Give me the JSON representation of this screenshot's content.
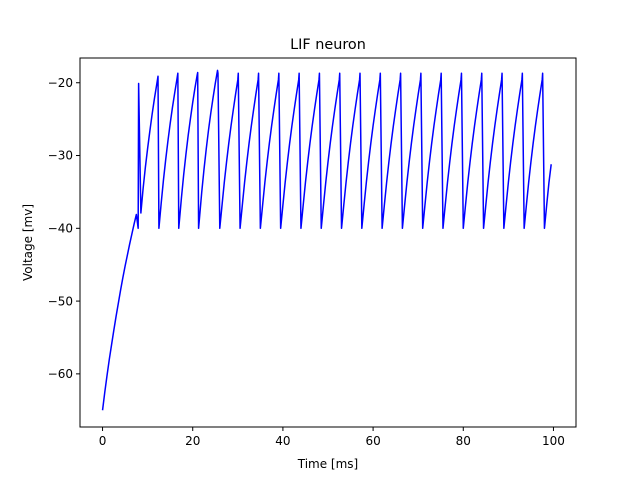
{
  "chart_data": {
    "type": "line",
    "title": "LIF neuron",
    "xlabel": "Time [ms]",
    "ylabel": "Voltage [mv]",
    "xlim": [
      -5,
      105
    ],
    "ylim": [
      -67.3,
      -16.6
    ],
    "grid": false,
    "xticks": [
      0,
      20,
      40,
      60,
      80,
      100
    ],
    "yticks": [
      -60,
      -50,
      -40,
      -30,
      -20
    ],
    "xtick_labels": [
      "0",
      "20",
      "40",
      "60",
      "80",
      "100"
    ],
    "ytick_labels": [
      "−60",
      "−50",
      "−40",
      "−30",
      "−20"
    ],
    "series": [
      {
        "color": "#0000ff",
        "x": [
          0,
          0.5,
          1,
          1.5,
          2,
          2.5,
          3,
          3.5,
          4,
          4.5,
          5,
          5.5,
          6,
          6.5,
          7,
          7.5,
          7.9,
          8,
          8.5,
          9,
          9.5,
          10,
          10.5,
          11,
          11.5,
          12,
          12.3,
          12.5,
          13,
          13.5,
          14,
          14.5,
          15,
          15.5,
          16,
          16.5,
          16.7,
          16.9,
          17.5,
          18,
          18.5,
          19,
          19.5,
          20,
          20.5,
          21,
          21.1,
          21.3,
          22,
          22.5,
          23,
          23.5,
          24,
          24.5,
          25,
          25.5,
          25.6,
          26,
          26.5,
          27,
          27.5,
          28,
          28.5,
          29,
          29.5,
          30,
          30.1,
          30.5,
          31,
          31.5,
          32,
          32.5,
          33,
          33.5,
          34,
          34.5,
          34.6,
          35,
          35.5,
          36,
          36.5,
          37,
          37.5,
          38,
          38.5,
          39,
          39.1,
          39.5,
          40,
          40.5,
          41,
          41.5,
          42,
          42.5,
          43,
          43.5,
          43.6,
          44,
          44.5,
          45,
          45.5,
          46,
          46.5,
          47,
          47.5,
          48,
          48.1,
          48.5,
          49,
          49.5,
          50,
          50.5,
          51,
          51.5,
          52,
          52.5,
          52.6,
          53,
          53.5,
          54,
          54.5,
          55,
          55.5,
          56,
          56.5,
          57,
          57.1,
          57.5,
          58,
          58.5,
          59,
          59.5,
          60,
          60.5,
          61,
          61.5,
          61.6,
          62,
          62.5,
          63,
          63.5,
          64,
          64.5,
          65,
          65.5,
          66,
          66.1,
          66.5,
          67,
          67.5,
          68,
          68.5,
          69,
          69.5,
          70,
          70.5,
          70.6,
          71,
          71.5,
          72,
          72.5,
          73,
          73.5,
          74,
          74.5,
          75,
          75.1,
          75.5,
          76,
          76.5,
          77,
          77.5,
          78,
          78.5,
          79,
          79.5,
          79.6,
          80,
          80.5,
          81,
          81.5,
          82,
          82.5,
          83,
          83.5,
          84,
          84.1,
          84.5,
          85,
          85.5,
          86,
          86.5,
          87,
          87.5,
          88,
          88.5,
          88.6,
          89,
          89.5,
          90,
          90.5,
          91,
          91.5,
          92,
          92.5,
          93,
          93.1,
          93.5,
          94,
          94.5,
          95,
          95.5,
          96,
          96.5,
          97,
          97.5,
          97.6,
          98,
          98.5,
          99,
          99.5
        ],
        "y": [
          -65,
          -62.5,
          -60.2,
          -58,
          -56,
          -54,
          -52.1,
          -50.3,
          -48.5,
          -46.8,
          -45.2,
          -43.7,
          -42.2,
          -40.8,
          -39.4,
          -38.1,
          -40,
          -20.1,
          -37.9,
          -34.5,
          -31.6,
          -29,
          -26.6,
          -24.3,
          -22.2,
          -20.3,
          -19.1,
          -40,
          -36.6,
          -33.4,
          -30.6,
          -28,
          -25.6,
          -23.4,
          -21.4,
          -19.5,
          -18.7,
          -40,
          -35.8,
          -32.6,
          -29.8,
          -27.2,
          -24.9,
          -22.7,
          -20.7,
          -18.9,
          -18.6,
          -40,
          -35,
          -31.9,
          -29.1,
          -26.5,
          -24.2,
          -22.1,
          -20.1,
          -18.3,
          -18.7,
          -40,
          -36.8,
          -33.7,
          -30.9,
          -28.3,
          -25.9,
          -23.7,
          -21.6,
          -19.6,
          -18.7,
          -40,
          -36.8,
          -33.7,
          -30.9,
          -28.3,
          -25.9,
          -23.7,
          -21.6,
          -19.6,
          -18.7,
          -40,
          -36.8,
          -33.7,
          -30.9,
          -28.3,
          -25.9,
          -23.7,
          -21.6,
          -19.6,
          -18.7,
          -40,
          -36.8,
          -33.7,
          -30.9,
          -28.3,
          -25.9,
          -23.7,
          -21.6,
          -19.6,
          -18.7,
          -40,
          -36.8,
          -33.7,
          -30.9,
          -28.3,
          -25.9,
          -23.7,
          -21.6,
          -19.6,
          -18.7,
          -40,
          -36.8,
          -33.7,
          -30.9,
          -28.3,
          -25.9,
          -23.7,
          -21.6,
          -19.6,
          -18.7,
          -40,
          -36.8,
          -33.7,
          -30.9,
          -28.3,
          -25.9,
          -23.7,
          -21.6,
          -19.6,
          -18.7,
          -40,
          -36.8,
          -33.7,
          -30.9,
          -28.3,
          -25.9,
          -23.7,
          -21.6,
          -19.6,
          -18.7,
          -40,
          -36.8,
          -33.7,
          -30.9,
          -28.3,
          -25.9,
          -23.7,
          -21.6,
          -19.6,
          -18.7,
          -40,
          -36.8,
          -33.7,
          -30.9,
          -28.3,
          -25.9,
          -23.7,
          -21.6,
          -19.6,
          -18.7,
          -40,
          -36.8,
          -33.7,
          -30.9,
          -28.3,
          -25.9,
          -23.7,
          -21.6,
          -19.6,
          -18.7,
          -40,
          -36.8,
          -33.7,
          -30.9,
          -28.3,
          -25.9,
          -23.7,
          -21.6,
          -19.6,
          -18.7,
          -40,
          -36.8,
          -33.7,
          -30.9,
          -28.3,
          -25.9,
          -23.7,
          -21.6,
          -19.6,
          -18.7,
          -40,
          -36.8,
          -33.7,
          -30.9,
          -28.3,
          -25.9,
          -23.7,
          -21.6,
          -19.6,
          -18.7,
          -40,
          -36.8,
          -33.7,
          -30.9,
          -28.3,
          -25.9,
          -23.7,
          -21.6,
          -19.6,
          -18.7,
          -40,
          -36.8,
          -33.7,
          -30.9,
          -28.3,
          -25.9,
          -23.7,
          -21.6,
          -19.6,
          -18.7,
          -40,
          -36.8,
          -33.7,
          -31.2
        ]
      }
    ]
  }
}
